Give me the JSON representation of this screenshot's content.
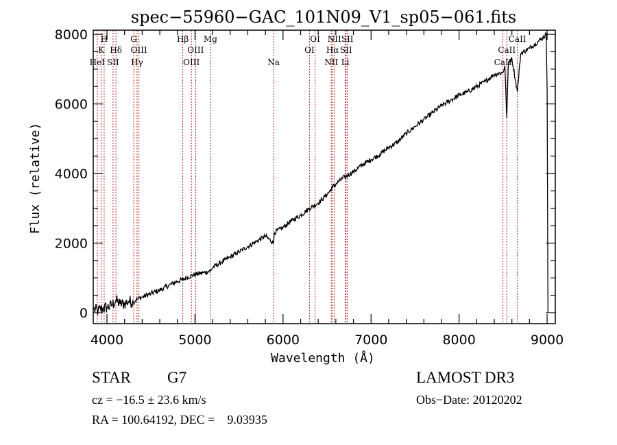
{
  "chart_data": {
    "type": "line",
    "title": "spec−55960−GAC_101N09_V1_sp05−061.fits",
    "xlabel": "Wavelength (Å)",
    "ylabel": "Flux (relative)",
    "xlim": [
      3844,
      9093
    ],
    "ylim": [
      -315,
      8120
    ],
    "x_ticks": [
      4000,
      5000,
      6000,
      7000,
      8000,
      9000
    ],
    "x_tick_labels": [
      "4000",
      "5000",
      "6000",
      "7000",
      "8000",
      "9000"
    ],
    "x_minor_step": 200,
    "y_ticks": [
      0,
      2000,
      4000,
      6000,
      8000
    ],
    "y_tick_labels": [
      "0",
      "2000",
      "4000",
      "6000",
      "8000"
    ],
    "y_minor_step": 500,
    "grid": false,
    "series": [
      {
        "name": "spectrum",
        "color": "#000000",
        "x": [
          3850,
          3900,
          3950,
          4000,
          4050,
          4100,
          4150,
          4200,
          4250,
          4300,
          4350,
          4400,
          4500,
          4600,
          4700,
          4800,
          4861,
          4900,
          5000,
          5100,
          5175,
          5200,
          5300,
          5400,
          5500,
          5600,
          5700,
          5800,
          5893,
          5900,
          6000,
          6100,
          6200,
          6300,
          6400,
          6500,
          6563,
          6600,
          6700,
          6800,
          6900,
          7000,
          7100,
          7200,
          7300,
          7400,
          7500,
          7600,
          7700,
          7800,
          7900,
          8000,
          8100,
          8200,
          8300,
          8400,
          8498,
          8520,
          8542,
          8560,
          8600,
          8662,
          8700,
          8800,
          8900,
          8950,
          8990,
          9000,
          9010
        ],
        "y": [
          100,
          50,
          120,
          150,
          200,
          350,
          250,
          260,
          330,
          300,
          400,
          450,
          550,
          650,
          780,
          900,
          950,
          1000,
          1100,
          1150,
          1200,
          1300,
          1450,
          1600,
          1750,
          1900,
          2050,
          2200,
          2000,
          2300,
          2450,
          2650,
          2800,
          3000,
          3150,
          3400,
          3600,
          3700,
          3900,
          4050,
          4250,
          4400,
          4550,
          4750,
          4900,
          5150,
          5350,
          5550,
          5750,
          5950,
          6100,
          6250,
          6350,
          6500,
          6650,
          6850,
          6900,
          7100,
          5600,
          7200,
          7300,
          6350,
          7450,
          7600,
          7800,
          7900,
          8000,
          6400,
          0
        ]
      }
    ],
    "spectral_lines": [
      {
        "label": "H",
        "wavelength": 3968,
        "row": 0
      },
      {
        "label": "K",
        "wavelength": 3934,
        "row": 1
      },
      {
        "label": "HeI",
        "wavelength": 3889,
        "row": 2
      },
      {
        "label": "SII",
        "wavelength": 4069,
        "row": 2
      },
      {
        "label": "Hδ",
        "wavelength": 4102,
        "row": 1
      },
      {
        "label": "G",
        "wavelength": 4304,
        "row": 0
      },
      {
        "label": "OIII",
        "wavelength": 4363,
        "row": 1
      },
      {
        "label": "Hγ",
        "wavelength": 4341,
        "row": 2
      },
      {
        "label": "Hβ",
        "wavelength": 4861,
        "row": 0
      },
      {
        "label": "OIII",
        "wavelength": 5007,
        "row": 1
      },
      {
        "label": "OIII",
        "wavelength": 4959,
        "row": 2
      },
      {
        "label": "Mg",
        "wavelength": 5175,
        "row": 0
      },
      {
        "label": "Na",
        "wavelength": 5893,
        "row": 2
      },
      {
        "label": "OI",
        "wavelength": 6364,
        "row": 0
      },
      {
        "label": "OI",
        "wavelength": 6300,
        "row": 1
      },
      {
        "label": "NII",
        "wavelength": 6583,
        "row": 0
      },
      {
        "label": "Hα",
        "wavelength": 6563,
        "row": 1
      },
      {
        "label": "NII",
        "wavelength": 6548,
        "row": 2
      },
      {
        "label": "SII",
        "wavelength": 6731,
        "row": 0
      },
      {
        "label": "SII",
        "wavelength": 6716,
        "row": 1
      },
      {
        "label": "Li",
        "wavelength": 6707,
        "row": 2
      },
      {
        "label": "CaII",
        "wavelength": 8662,
        "row": 0
      },
      {
        "label": "CaII",
        "wavelength": 8542,
        "row": 1
      },
      {
        "label": "CaII",
        "wavelength": 8498,
        "row": 2
      }
    ],
    "line_marker_color": "#b22222"
  },
  "info": {
    "object_class": "STAR",
    "subclass": "G7",
    "survey": "LAMOST DR3",
    "redshift": "cz = −16.5 ± 23.6 km/s",
    "obs_date": "Obs−Date: 20120202",
    "coords": "RA = 100.64192, DEC =    9.03935"
  }
}
